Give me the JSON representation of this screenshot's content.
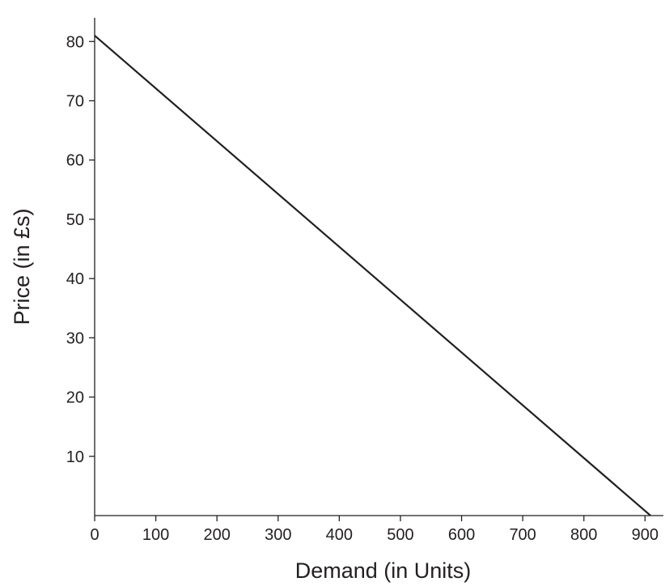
{
  "chart_data": {
    "type": "line",
    "title": "",
    "xlabel": "Demand (in Units)",
    "ylabel": "Price (in £s)",
    "xlim": [
      0,
      930
    ],
    "ylim": [
      0,
      84
    ],
    "x_ticks": [
      0,
      100,
      200,
      300,
      400,
      500,
      600,
      700,
      800,
      900
    ],
    "y_ticks": [
      10,
      20,
      30,
      40,
      50,
      60,
      70,
      80
    ],
    "x_tick_labels": [
      "0",
      "100",
      "200",
      "300",
      "400",
      "500",
      "600",
      "700",
      "800",
      "900"
    ],
    "y_tick_labels": [
      "10",
      "20",
      "30",
      "40",
      "50",
      "60",
      "70",
      "80"
    ],
    "grid": false,
    "series": [
      {
        "x": [
          0,
          909
        ],
        "y": [
          81,
          0
        ]
      }
    ],
    "colors": {
      "line": "#231f20",
      "axis": "#231f20",
      "background": "#ffffff"
    }
  }
}
